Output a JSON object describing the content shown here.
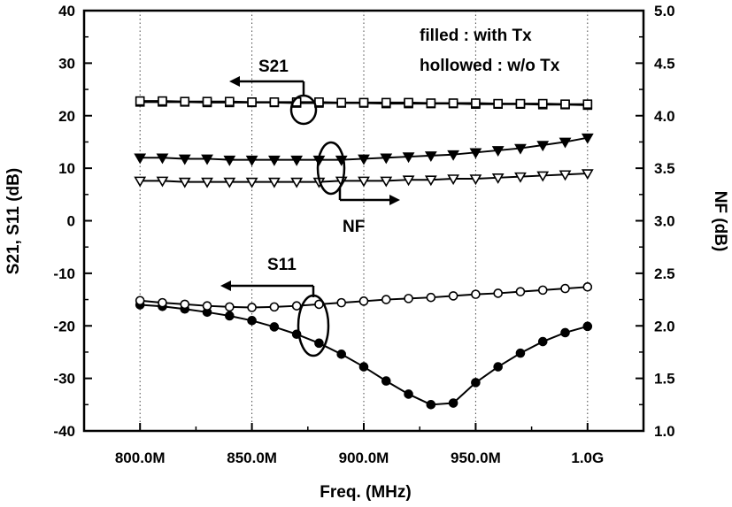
{
  "chart_data": {
    "type": "line",
    "xlabel": "Freq. (MHz)",
    "ylabel_left": "S21, S11 (dB)",
    "ylabel_right": "NF (dB)",
    "x_tick_labels": [
      "800.0M",
      "850.0M",
      "900.0M",
      "950.0M",
      "1.0G"
    ],
    "x_ticks": [
      800,
      850,
      900,
      950,
      1000
    ],
    "xlim": [
      775,
      1025
    ],
    "ylim_left": [
      -40,
      40
    ],
    "ylim_right": [
      1.0,
      5.0
    ],
    "yticks_left": [
      -40,
      -30,
      -20,
      -10,
      0,
      10,
      20,
      30,
      40
    ],
    "yticks_right": [
      1.0,
      1.5,
      2.0,
      2.5,
      3.0,
      3.5,
      4.0,
      4.5,
      5.0
    ],
    "yticks_right_labels": [
      "1.0",
      "1.5",
      "2.0",
      "2.5",
      "3.0",
      "3.5",
      "4.0",
      "4.5",
      "5.0"
    ],
    "grid": "vertical-dotted",
    "legend_note": [
      "filled : with Tx",
      "hollowed : w/o Tx"
    ],
    "annotations": [
      "S21",
      "NF",
      "S11"
    ],
    "x": [
      800,
      810,
      820,
      830,
      840,
      850,
      860,
      870,
      880,
      890,
      900,
      910,
      920,
      930,
      940,
      950,
      960,
      970,
      980,
      990,
      1000
    ],
    "series": [
      {
        "key": "s21_with_tx",
        "axis": "left",
        "marker": "square",
        "filled": true,
        "values": [
          22.6,
          22.6,
          22.6,
          22.5,
          22.5,
          22.5,
          22.5,
          22.4,
          22.4,
          22.4,
          22.4,
          22.3,
          22.3,
          22.3,
          22.3,
          22.2,
          22.2,
          22.2,
          22.1,
          22.1,
          22.0
        ]
      },
      {
        "key": "s21_wo_tx",
        "axis": "left",
        "marker": "square",
        "filled": false,
        "values": [
          22.8,
          22.8,
          22.7,
          22.7,
          22.7,
          22.6,
          22.6,
          22.6,
          22.6,
          22.5,
          22.5,
          22.5,
          22.5,
          22.4,
          22.4,
          22.4,
          22.3,
          22.3,
          22.3,
          22.2,
          22.2
        ]
      },
      {
        "key": "nf_with_tx",
        "axis": "right",
        "marker": "triangle-down",
        "filled": true,
        "values": [
          3.6,
          3.6,
          3.59,
          3.59,
          3.58,
          3.58,
          3.58,
          3.58,
          3.58,
          3.58,
          3.59,
          3.6,
          3.61,
          3.62,
          3.63,
          3.65,
          3.67,
          3.69,
          3.72,
          3.75,
          3.79
        ]
      },
      {
        "key": "nf_wo_tx",
        "axis": "right",
        "marker": "triangle-down",
        "filled": false,
        "values": [
          3.38,
          3.38,
          3.37,
          3.37,
          3.37,
          3.37,
          3.37,
          3.37,
          3.37,
          3.38,
          3.38,
          3.38,
          3.39,
          3.39,
          3.4,
          3.4,
          3.41,
          3.42,
          3.43,
          3.44,
          3.45
        ]
      },
      {
        "key": "s11_with_tx",
        "axis": "left",
        "marker": "circle",
        "filled": true,
        "values": [
          -16.0,
          -16.3,
          -16.8,
          -17.4,
          -18.1,
          -19.0,
          -20.2,
          -21.6,
          -23.3,
          -25.4,
          -27.8,
          -30.5,
          -33.0,
          -35.0,
          -34.7,
          -30.8,
          -27.8,
          -25.2,
          -23.0,
          -21.3,
          -20.1
        ]
      },
      {
        "key": "s11_wo_tx",
        "axis": "left",
        "marker": "circle",
        "filled": false,
        "values": [
          -15.2,
          -15.6,
          -15.9,
          -16.2,
          -16.4,
          -16.5,
          -16.4,
          -16.2,
          -15.9,
          -15.6,
          -15.3,
          -15.0,
          -14.8,
          -14.6,
          -14.3,
          -14.0,
          -13.8,
          -13.5,
          -13.2,
          -12.9,
          -12.6
        ]
      }
    ]
  }
}
